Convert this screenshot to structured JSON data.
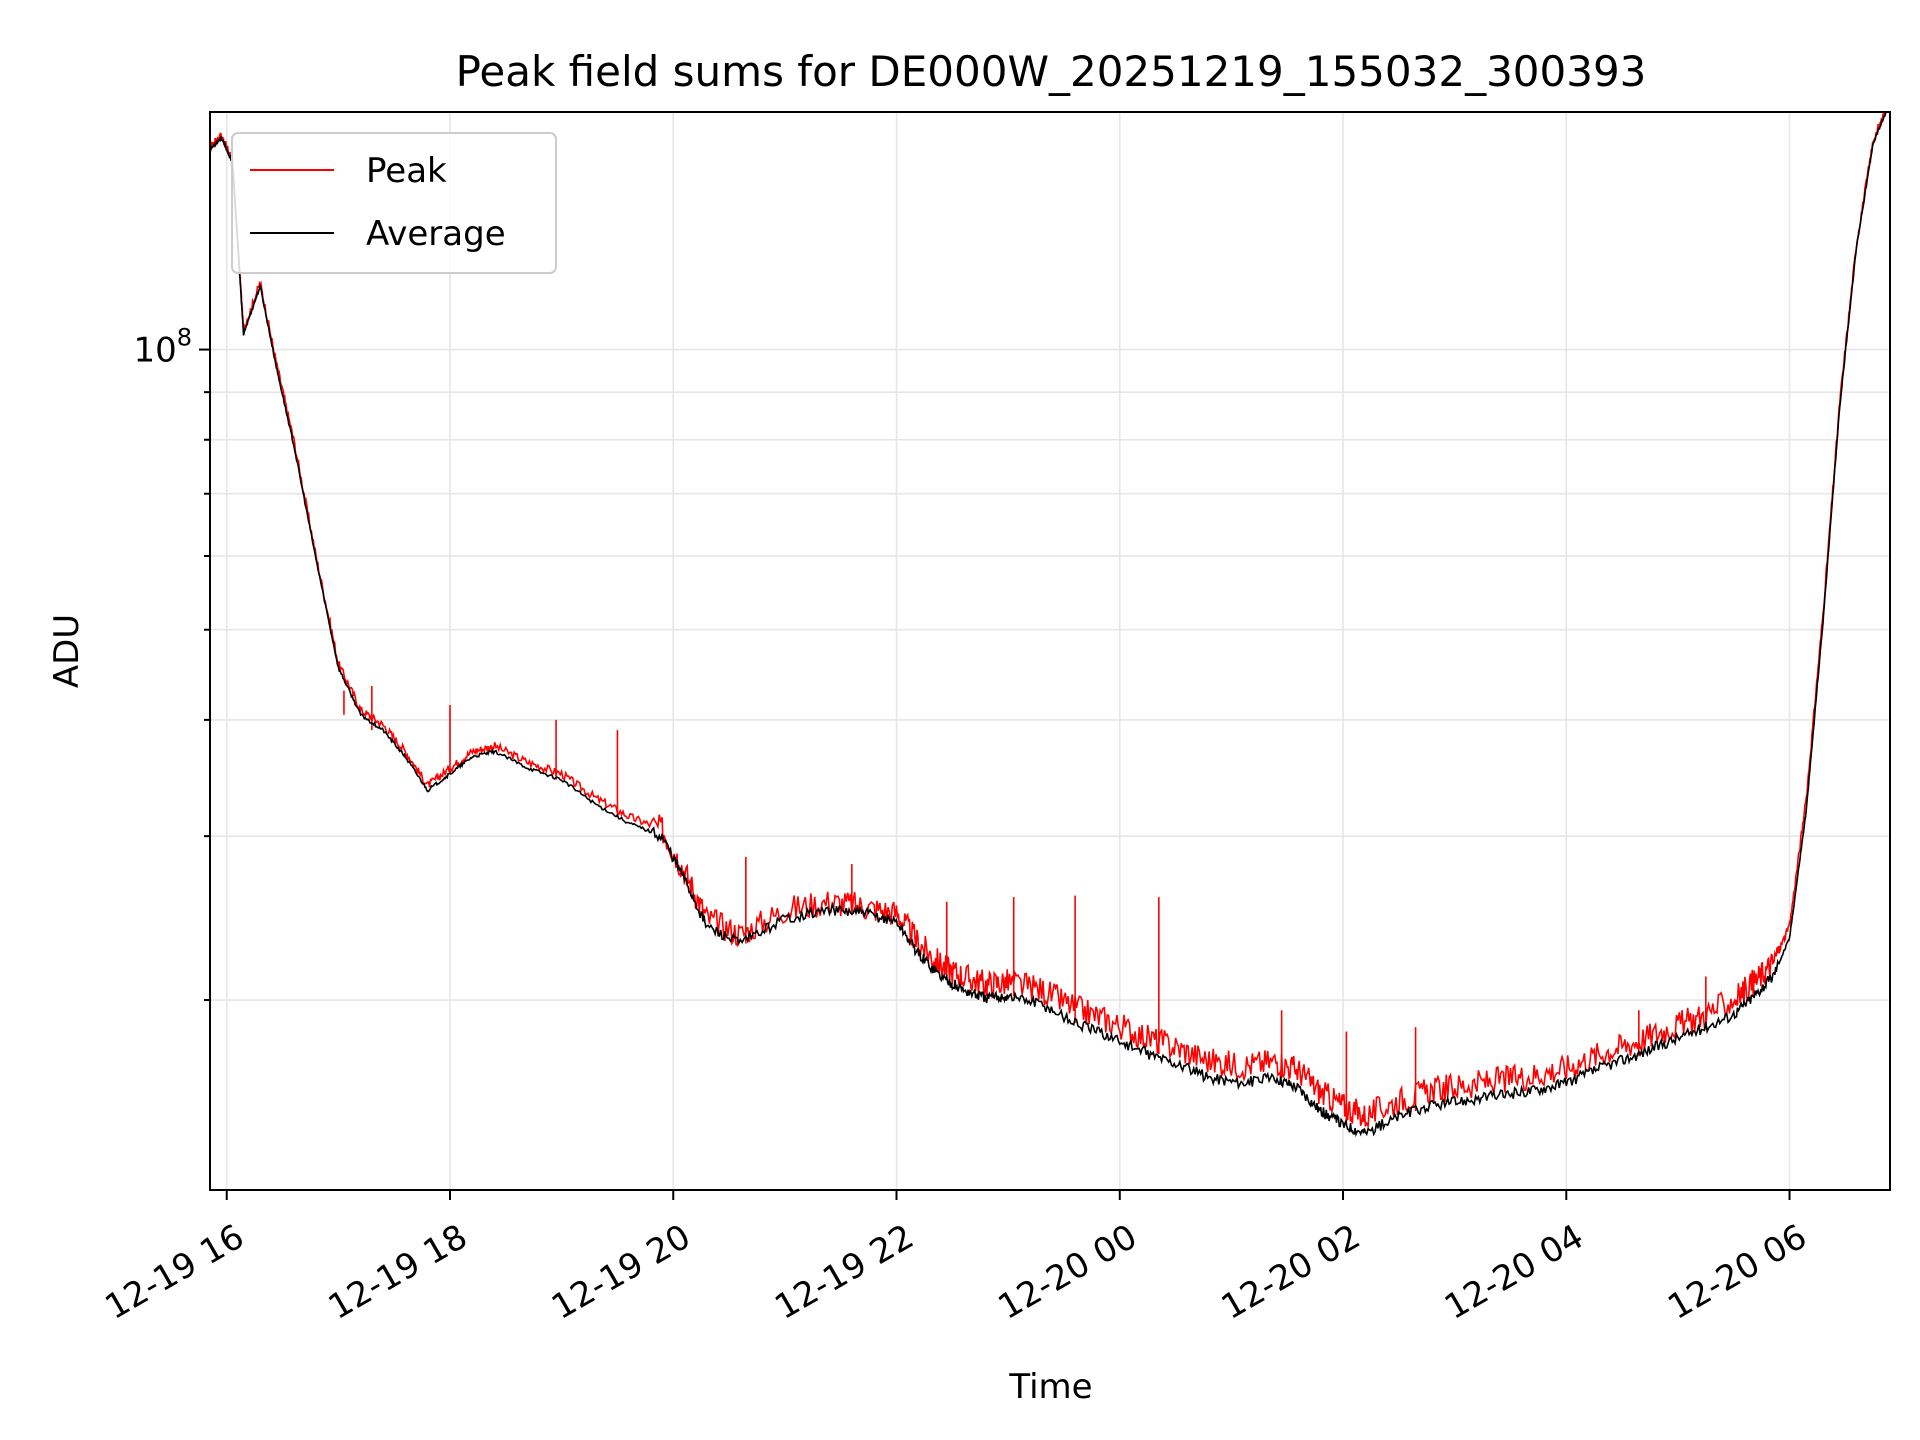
{
  "chart_data": {
    "type": "line",
    "title": "Peak field sums for DE000W_20251219_155032_300393",
    "xlabel": "Time",
    "ylabel": "ADU",
    "yscale": "log",
    "xlim_hours": [
      -0.15,
      14.9
    ],
    "ylim": [
      12500000,
      180000000
    ],
    "y_major_tick": {
      "value": 100000000,
      "label_base": "10",
      "label_exp": "8"
    },
    "y_minor_ticks": [
      20000000,
      30000000,
      40000000,
      50000000,
      60000000,
      70000000,
      80000000,
      90000000
    ],
    "x_ticks": [
      {
        "hour": 0,
        "label": "12-19 16"
      },
      {
        "hour": 2,
        "label": "12-19 18"
      },
      {
        "hour": 4,
        "label": "12-19 20"
      },
      {
        "hour": 6,
        "label": "12-19 22"
      },
      {
        "hour": 8,
        "label": "12-20 00"
      },
      {
        "hour": 10,
        "label": "12-20 02"
      },
      {
        "hour": 12,
        "label": "12-20 04"
      },
      {
        "hour": 14,
        "label": "12-20 06"
      }
    ],
    "grid": true,
    "legend_position": "top-left",
    "series": [
      {
        "name": "Peak",
        "color": "#ff0000",
        "x": [
          -0.15,
          -0.05,
          0.05,
          0.1,
          0.15,
          0.3,
          0.45,
          0.6,
          0.8,
          1.0,
          1.2,
          1.4,
          1.6,
          1.8,
          2.0,
          2.2,
          2.4,
          2.7,
          3.0,
          3.3,
          3.6,
          3.9,
          4.1,
          4.3,
          4.6,
          5.0,
          5.4,
          5.7,
          6.0,
          6.2,
          6.4,
          6.6,
          6.8,
          7.0,
          7.3,
          7.6,
          7.9,
          8.2,
          8.5,
          8.8,
          9.1,
          9.4,
          9.6,
          9.8,
          10.0,
          10.2,
          10.5,
          10.8,
          11.1,
          11.4,
          11.7,
          12.0,
          12.3,
          12.6,
          12.9,
          13.2,
          13.5,
          13.7,
          13.85,
          14.0,
          14.15,
          14.3,
          14.45,
          14.6,
          14.75,
          14.9
        ],
        "y": [
          165000000,
          170000000,
          160000000,
          130000000,
          105000000,
          118000000,
          96000000,
          80000000,
          60000000,
          46000000,
          41000000,
          39500000,
          37000000,
          34000000,
          35500000,
          37000000,
          37500000,
          36000000,
          35000000,
          33000000,
          31500000,
          30500000,
          27500000,
          24500000,
          23500000,
          25000000,
          25500000,
          25200000,
          24800000,
          23000000,
          21800000,
          21200000,
          20800000,
          20900000,
          20500000,
          19600000,
          19000000,
          18300000,
          17800000,
          17200000,
          17000000,
          17200000,
          16800000,
          15900000,
          15400000,
          15000000,
          15600000,
          16000000,
          16200000,
          16400000,
          16600000,
          16900000,
          17500000,
          18000000,
          18600000,
          19200000,
          20000000,
          21000000,
          21900000,
          24000000,
          33000000,
          52000000,
          88000000,
          130000000,
          168000000,
          185000000
        ]
      },
      {
        "name": "Average",
        "color": "#000000",
        "x": [
          -0.15,
          -0.05,
          0.05,
          0.1,
          0.15,
          0.3,
          0.45,
          0.6,
          0.8,
          1.0,
          1.2,
          1.4,
          1.6,
          1.8,
          2.0,
          2.2,
          2.4,
          2.7,
          3.0,
          3.3,
          3.6,
          3.9,
          4.1,
          4.3,
          4.6,
          5.0,
          5.4,
          5.7,
          6.0,
          6.2,
          6.4,
          6.6,
          6.8,
          7.0,
          7.3,
          7.6,
          7.9,
          8.2,
          8.5,
          8.8,
          9.1,
          9.4,
          9.6,
          9.8,
          10.0,
          10.2,
          10.5,
          10.8,
          11.1,
          11.4,
          11.7,
          12.0,
          12.3,
          12.6,
          12.9,
          13.2,
          13.5,
          13.7,
          13.85,
          14.0,
          14.15,
          14.3,
          14.45,
          14.6,
          14.75,
          14.9
        ],
        "y": [
          164000000,
          169000000,
          159000000,
          129000000,
          104000000,
          117000000,
          95000000,
          79000000,
          59500000,
          45500000,
          40500000,
          39000000,
          36500000,
          33600000,
          35000000,
          36500000,
          37000000,
          35500000,
          34500000,
          32500000,
          31000000,
          30000000,
          27000000,
          24000000,
          23000000,
          24500000,
          25000000,
          24800000,
          24300000,
          22400000,
          21200000,
          20500000,
          20100000,
          20200000,
          19800000,
          18900000,
          18300000,
          17600000,
          17100000,
          16500000,
          16300000,
          16500000,
          16100000,
          15200000,
          14700000,
          14400000,
          15000000,
          15400000,
          15600000,
          15800000,
          16000000,
          16300000,
          16900000,
          17400000,
          18000000,
          18600000,
          19300000,
          20300000,
          21200000,
          23300000,
          32000000,
          51000000,
          87000000,
          129000000,
          167000000,
          184000000
        ]
      }
    ],
    "spikes": [
      {
        "x": 1.05,
        "base": 40500000,
        "top": 43000000
      },
      {
        "x": 1.3,
        "base": 39000000,
        "top": 43500000
      },
      {
        "x": 2.0,
        "base": 35000000,
        "top": 41500000
      },
      {
        "x": 2.95,
        "base": 34500000,
        "top": 40000000
      },
      {
        "x": 3.5,
        "base": 31500000,
        "top": 39000000
      },
      {
        "x": 4.65,
        "base": 23000000,
        "top": 28500000
      },
      {
        "x": 5.6,
        "base": 25000000,
        "top": 28000000
      },
      {
        "x": 6.45,
        "base": 21000000,
        "top": 25500000
      },
      {
        "x": 7.05,
        "base": 20200000,
        "top": 25800000
      },
      {
        "x": 7.6,
        "base": 18900000,
        "top": 25900000
      },
      {
        "x": 8.35,
        "base": 17500000,
        "top": 25800000
      },
      {
        "x": 9.45,
        "base": 16500000,
        "top": 19500000
      },
      {
        "x": 10.03,
        "base": 14700000,
        "top": 18500000
      },
      {
        "x": 10.65,
        "base": 15200000,
        "top": 18700000
      },
      {
        "x": 12.65,
        "base": 17400000,
        "top": 19500000
      },
      {
        "x": 13.25,
        "base": 18600000,
        "top": 21200000
      }
    ]
  }
}
